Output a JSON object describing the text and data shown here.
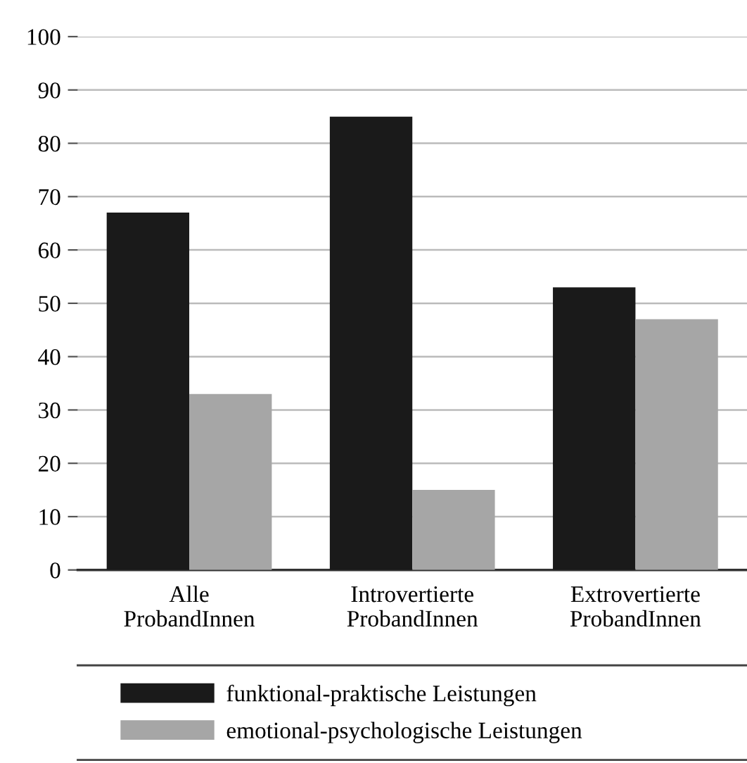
{
  "chart_data": {
    "type": "bar",
    "categories": [
      "Alle\nProbandInnen",
      "Introvertierte\nProbandInnen",
      "Extrovertierte\nProbandInnen"
    ],
    "series": [
      {
        "name": "funktional-praktische Leistungen",
        "color": "#1a1a1a",
        "values": [
          67,
          85,
          53
        ]
      },
      {
        "name": "emotional-psychologische Leistungen",
        "color": "#a6a6a6",
        "values": [
          33,
          15,
          47
        ]
      }
    ],
    "ylim": [
      0,
      100
    ],
    "yticks": [
      0,
      10,
      20,
      30,
      40,
      50,
      60,
      70,
      80,
      90,
      100
    ],
    "grid": "y",
    "legend": "bottom"
  }
}
